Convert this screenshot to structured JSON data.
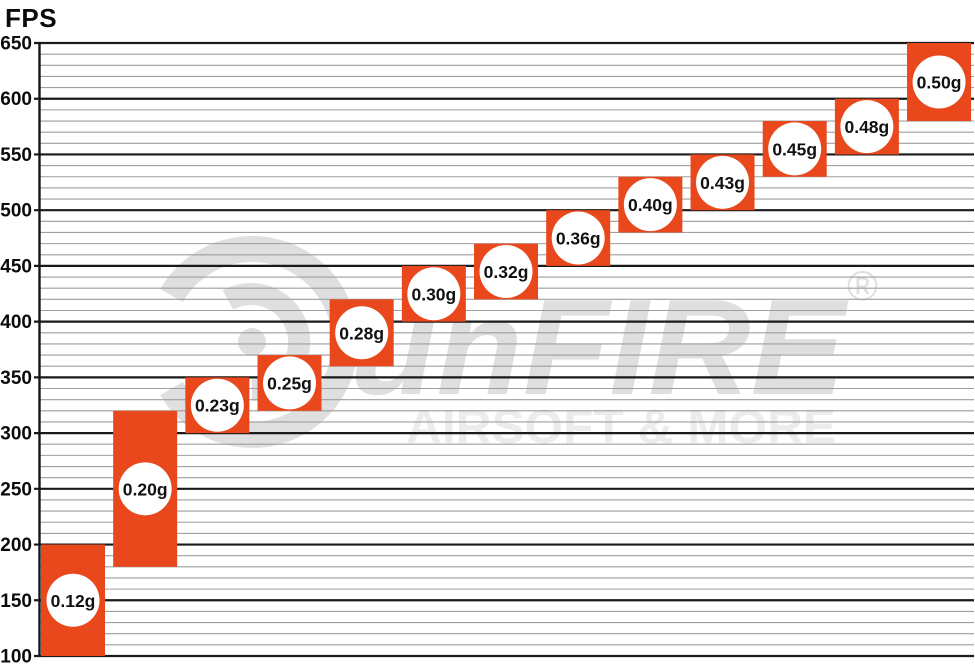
{
  "title": "FPS",
  "watermark": {
    "brand_text": "unFIRE",
    "registered_mark": "®",
    "subtitle": "AIRSOFT & MORE"
  },
  "colors": {
    "background": "#ffffff",
    "bar_fill": "#e8481c",
    "badge_fill": "#ffffff",
    "bar_label_text": "#111111",
    "axis_label_text": "#0b0b0b",
    "major_gridline": "#1a1a1a",
    "minor_gridline": "#9e9e9e",
    "axis_line": "#161616",
    "watermark_dark": "#dfdfdf",
    "watermark_light": "#ececec"
  },
  "chart_data": {
    "type": "bar",
    "subtype": "floating-range-columns",
    "ylabel": "FPS",
    "xlabel": "",
    "ylim": [
      100,
      650
    ],
    "y_major_step": 50,
    "y_minor_step": 10,
    "y_ticks": [
      100,
      150,
      200,
      250,
      300,
      350,
      400,
      450,
      500,
      550,
      600,
      650
    ],
    "grid": true,
    "legend_position": "none",
    "categories": [
      "0.12g",
      "0.20g",
      "0.23g",
      "0.25g",
      "0.28g",
      "0.30g",
      "0.32g",
      "0.36g",
      "0.40g",
      "0.43g",
      "0.45g",
      "0.48g",
      "0.50g"
    ],
    "ranges_fps": [
      [
        100,
        200
      ],
      [
        180,
        320
      ],
      [
        300,
        350
      ],
      [
        320,
        370
      ],
      [
        360,
        420
      ],
      [
        400,
        450
      ],
      [
        420,
        470
      ],
      [
        450,
        500
      ],
      [
        480,
        530
      ],
      [
        500,
        550
      ],
      [
        530,
        580
      ],
      [
        550,
        600
      ],
      [
        580,
        650
      ]
    ]
  }
}
